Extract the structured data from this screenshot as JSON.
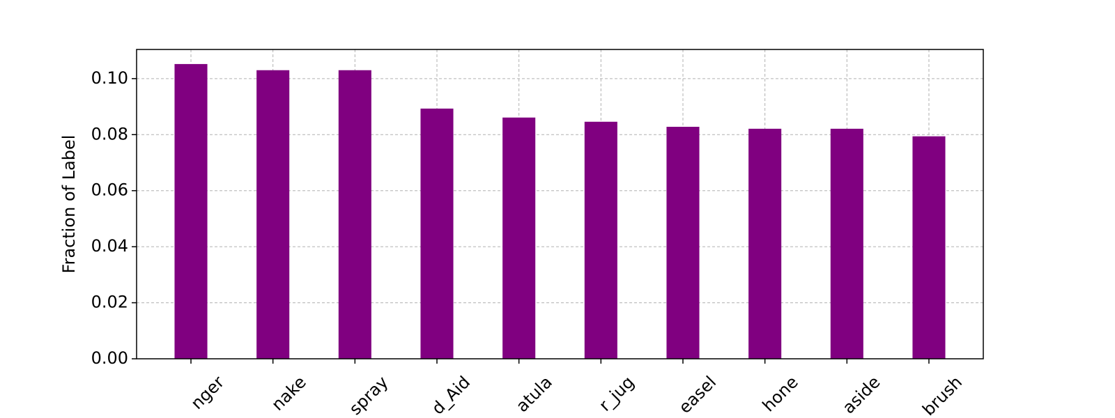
{
  "chart_data": {
    "type": "bar",
    "ylabel": "Fraction of Label",
    "categories": [
      "nger",
      "nake",
      "spray",
      "d_Aid",
      "atula",
      "r_jug",
      "easel",
      "hone",
      "aside",
      "brush"
    ],
    "values": [
      0.1052,
      0.103,
      0.103,
      0.0893,
      0.0861,
      0.0846,
      0.0828,
      0.0821,
      0.0821,
      0.0794
    ],
    "color": "#800080",
    "ylim": [
      0,
      0.1104
    ],
    "yticks": [
      {
        "value": 0,
        "label": "0.00"
      },
      {
        "value": 0.02,
        "label": "0.02"
      },
      {
        "value": 0.04,
        "label": "0.04"
      },
      {
        "value": 0.06,
        "label": "0.06"
      },
      {
        "value": 0.08,
        "label": "0.08"
      },
      {
        "value": 0.1,
        "label": "0.10"
      }
    ],
    "grid": true
  }
}
